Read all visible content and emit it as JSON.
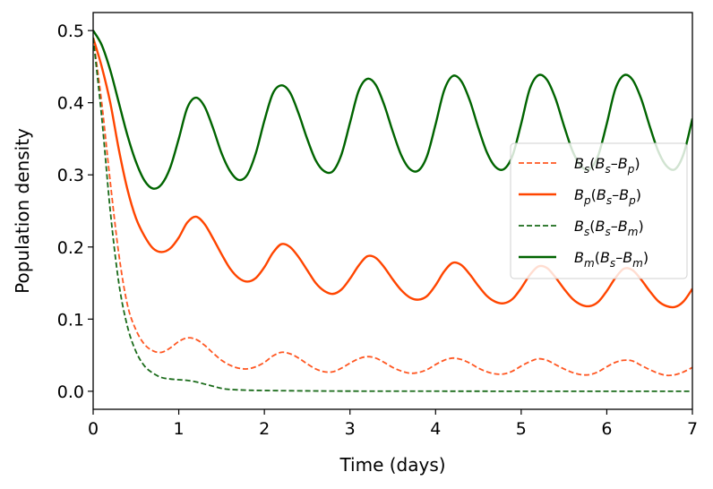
{
  "chart_data": {
    "type": "line",
    "title": "",
    "xlabel": "Time (days)",
    "ylabel": "Population density",
    "xlim": [
      0,
      7
    ],
    "ylim": [
      -0.025,
      0.525
    ],
    "xticks": [
      0,
      1,
      2,
      3,
      4,
      5,
      6,
      7
    ],
    "xtick_labels": [
      "0",
      "1",
      "2",
      "3",
      "4",
      "5",
      "6",
      "7"
    ],
    "yticks": [
      0.0,
      0.1,
      0.2,
      0.3,
      0.4,
      0.5
    ],
    "ytick_labels": [
      "0.0",
      "0.1",
      "0.2",
      "0.3",
      "0.4",
      "0.5"
    ],
    "grid": false,
    "legend_position": "center-right",
    "series": [
      {
        "name": "Bs(Bs–Bp)",
        "legend": {
          "main": "B",
          "sub1": "s",
          "open": "(B",
          "sub2": "s",
          "dash": "–B",
          "sub3": "p",
          "close": ")"
        },
        "color": "#ff5722",
        "style": "dashed",
        "points": [
          [
            0,
            0.49
          ],
          [
            0.1,
            0.4
          ],
          [
            0.2,
            0.29
          ],
          [
            0.3,
            0.19
          ],
          [
            0.4,
            0.12
          ],
          [
            0.5,
            0.085
          ],
          [
            0.6,
            0.065
          ],
          [
            0.7,
            0.056
          ],
          [
            0.8,
            0.054
          ],
          [
            0.9,
            0.06
          ],
          [
            1.0,
            0.069
          ],
          [
            1.1,
            0.074
          ],
          [
            1.2,
            0.072
          ],
          [
            1.3,
            0.064
          ],
          [
            1.4,
            0.053
          ],
          [
            1.5,
            0.043
          ],
          [
            1.6,
            0.036
          ],
          [
            1.7,
            0.032
          ],
          [
            1.8,
            0.031
          ],
          [
            1.9,
            0.034
          ],
          [
            2.0,
            0.04
          ],
          [
            2.1,
            0.049
          ],
          [
            2.2,
            0.054
          ],
          [
            2.3,
            0.052
          ],
          [
            2.4,
            0.046
          ],
          [
            2.5,
            0.038
          ],
          [
            2.6,
            0.031
          ],
          [
            2.7,
            0.027
          ],
          [
            2.8,
            0.027
          ],
          [
            2.9,
            0.032
          ],
          [
            3.0,
            0.039
          ],
          [
            3.1,
            0.045
          ],
          [
            3.2,
            0.048
          ],
          [
            3.3,
            0.046
          ],
          [
            3.4,
            0.04
          ],
          [
            3.5,
            0.033
          ],
          [
            3.6,
            0.028
          ],
          [
            3.7,
            0.025
          ],
          [
            3.8,
            0.026
          ],
          [
            3.9,
            0.03
          ],
          [
            4.0,
            0.037
          ],
          [
            4.1,
            0.043
          ],
          [
            4.2,
            0.046
          ],
          [
            4.3,
            0.044
          ],
          [
            4.4,
            0.039
          ],
          [
            4.5,
            0.032
          ],
          [
            4.6,
            0.027
          ],
          [
            4.7,
            0.024
          ],
          [
            4.8,
            0.024
          ],
          [
            4.9,
            0.028
          ],
          [
            5.0,
            0.035
          ],
          [
            5.1,
            0.041
          ],
          [
            5.2,
            0.045
          ],
          [
            5.3,
            0.043
          ],
          [
            5.4,
            0.037
          ],
          [
            5.5,
            0.031
          ],
          [
            5.6,
            0.026
          ],
          [
            5.7,
            0.023
          ],
          [
            5.8,
            0.023
          ],
          [
            5.9,
            0.027
          ],
          [
            6.0,
            0.034
          ],
          [
            6.1,
            0.04
          ],
          [
            6.2,
            0.043
          ],
          [
            6.3,
            0.042
          ],
          [
            6.4,
            0.036
          ],
          [
            6.5,
            0.03
          ],
          [
            6.6,
            0.025
          ],
          [
            6.7,
            0.022
          ],
          [
            6.8,
            0.023
          ],
          [
            6.9,
            0.027
          ],
          [
            7.0,
            0.033
          ]
        ]
      },
      {
        "name": "Bp(Bs–Bp)",
        "legend": {
          "main": "B",
          "sub1": "p",
          "open": "(B",
          "sub2": "s",
          "dash": "–B",
          "sub3": "p",
          "close": ")"
        },
        "color": "#ff4500",
        "style": "solid",
        "points": [
          [
            0,
            0.49
          ],
          [
            0.1,
            0.45
          ],
          [
            0.2,
            0.4
          ],
          [
            0.3,
            0.335
          ],
          [
            0.4,
            0.28
          ],
          [
            0.5,
            0.24
          ],
          [
            0.6,
            0.215
          ],
          [
            0.7,
            0.198
          ],
          [
            0.8,
            0.193
          ],
          [
            0.9,
            0.198
          ],
          [
            1.0,
            0.213
          ],
          [
            1.1,
            0.234
          ],
          [
            1.2,
            0.242
          ],
          [
            1.3,
            0.232
          ],
          [
            1.4,
            0.212
          ],
          [
            1.5,
            0.19
          ],
          [
            1.6,
            0.17
          ],
          [
            1.7,
            0.157
          ],
          [
            1.8,
            0.152
          ],
          [
            1.9,
            0.157
          ],
          [
            2.0,
            0.172
          ],
          [
            2.1,
            0.192
          ],
          [
            2.2,
            0.204
          ],
          [
            2.3,
            0.2
          ],
          [
            2.4,
            0.186
          ],
          [
            2.5,
            0.168
          ],
          [
            2.6,
            0.15
          ],
          [
            2.7,
            0.139
          ],
          [
            2.8,
            0.135
          ],
          [
            2.9,
            0.141
          ],
          [
            3.0,
            0.156
          ],
          [
            3.1,
            0.174
          ],
          [
            3.2,
            0.187
          ],
          [
            3.3,
            0.185
          ],
          [
            3.4,
            0.172
          ],
          [
            3.5,
            0.155
          ],
          [
            3.6,
            0.14
          ],
          [
            3.7,
            0.13
          ],
          [
            3.8,
            0.127
          ],
          [
            3.9,
            0.132
          ],
          [
            4.0,
            0.147
          ],
          [
            4.1,
            0.166
          ],
          [
            4.2,
            0.178
          ],
          [
            4.3,
            0.175
          ],
          [
            4.4,
            0.162
          ],
          [
            4.5,
            0.146
          ],
          [
            4.6,
            0.132
          ],
          [
            4.7,
            0.124
          ],
          [
            4.8,
            0.122
          ],
          [
            4.9,
            0.128
          ],
          [
            5.0,
            0.143
          ],
          [
            5.1,
            0.161
          ],
          [
            5.2,
            0.173
          ],
          [
            5.3,
            0.171
          ],
          [
            5.4,
            0.158
          ],
          [
            5.5,
            0.142
          ],
          [
            5.6,
            0.128
          ],
          [
            5.7,
            0.12
          ],
          [
            5.8,
            0.118
          ],
          [
            5.9,
            0.124
          ],
          [
            6.0,
            0.139
          ],
          [
            6.1,
            0.157
          ],
          [
            6.2,
            0.17
          ],
          [
            6.3,
            0.168
          ],
          [
            6.4,
            0.155
          ],
          [
            6.5,
            0.139
          ],
          [
            6.6,
            0.125
          ],
          [
            6.7,
            0.118
          ],
          [
            6.8,
            0.117
          ],
          [
            6.9,
            0.125
          ],
          [
            7.0,
            0.142
          ]
        ]
      },
      {
        "name": "Bs(Bs–Bm)",
        "legend": {
          "main": "B",
          "sub1": "s",
          "open": "(B",
          "sub2": "s",
          "dash": "–B",
          "sub3": "m",
          "close": ")"
        },
        "color": "#1a6b1a",
        "style": "dashed",
        "points": [
          [
            0,
            0.49
          ],
          [
            0.1,
            0.38
          ],
          [
            0.2,
            0.25
          ],
          [
            0.3,
            0.15
          ],
          [
            0.4,
            0.09
          ],
          [
            0.5,
            0.055
          ],
          [
            0.6,
            0.035
          ],
          [
            0.7,
            0.025
          ],
          [
            0.8,
            0.019
          ],
          [
            0.9,
            0.017
          ],
          [
            1.0,
            0.016
          ],
          [
            1.1,
            0.015
          ],
          [
            1.2,
            0.013
          ],
          [
            1.3,
            0.01
          ],
          [
            1.4,
            0.007
          ],
          [
            1.5,
            0.004
          ],
          [
            1.6,
            0.0025
          ],
          [
            1.8,
            0.0015
          ],
          [
            2.0,
            0.001
          ],
          [
            2.5,
            0.0005
          ],
          [
            3.0,
            0.0002
          ],
          [
            4.0,
            0.0001
          ],
          [
            5.0,
            0.0
          ],
          [
            6.0,
            0.0
          ],
          [
            7.0,
            0.0
          ]
        ]
      },
      {
        "name": "Bm(Bs–Bm)",
        "legend": {
          "main": "B",
          "sub1": "m",
          "open": "(B",
          "sub2": "s",
          "dash": "–B",
          "sub3": "m",
          "close": ")"
        },
        "color": "#006400",
        "style": "solid",
        "points": [
          [
            0,
            0.5
          ],
          [
            0.1,
            0.48
          ],
          [
            0.2,
            0.445
          ],
          [
            0.3,
            0.4
          ],
          [
            0.4,
            0.355
          ],
          [
            0.5,
            0.318
          ],
          [
            0.6,
            0.292
          ],
          [
            0.7,
            0.281
          ],
          [
            0.8,
            0.287
          ],
          [
            0.9,
            0.31
          ],
          [
            1.0,
            0.35
          ],
          [
            1.1,
            0.393
          ],
          [
            1.2,
            0.407
          ],
          [
            1.3,
            0.395
          ],
          [
            1.4,
            0.365
          ],
          [
            1.5,
            0.33
          ],
          [
            1.6,
            0.305
          ],
          [
            1.7,
            0.293
          ],
          [
            1.8,
            0.3
          ],
          [
            1.9,
            0.33
          ],
          [
            2.0,
            0.375
          ],
          [
            2.1,
            0.413
          ],
          [
            2.2,
            0.424
          ],
          [
            2.3,
            0.414
          ],
          [
            2.4,
            0.385
          ],
          [
            2.5,
            0.35
          ],
          [
            2.6,
            0.32
          ],
          [
            2.7,
            0.305
          ],
          [
            2.8,
            0.305
          ],
          [
            2.9,
            0.328
          ],
          [
            3.0,
            0.372
          ],
          [
            3.1,
            0.416
          ],
          [
            3.2,
            0.433
          ],
          [
            3.3,
            0.425
          ],
          [
            3.4,
            0.397
          ],
          [
            3.5,
            0.36
          ],
          [
            3.6,
            0.327
          ],
          [
            3.7,
            0.308
          ],
          [
            3.8,
            0.306
          ],
          [
            3.9,
            0.326
          ],
          [
            4.0,
            0.37
          ],
          [
            4.1,
            0.417
          ],
          [
            4.2,
            0.437
          ],
          [
            4.3,
            0.43
          ],
          [
            4.4,
            0.403
          ],
          [
            4.5,
            0.365
          ],
          [
            4.6,
            0.331
          ],
          [
            4.7,
            0.311
          ],
          [
            4.8,
            0.308
          ],
          [
            4.9,
            0.327
          ],
          [
            5.0,
            0.371
          ],
          [
            5.1,
            0.419
          ],
          [
            5.2,
            0.438
          ],
          [
            5.3,
            0.432
          ],
          [
            5.4,
            0.406
          ],
          [
            5.5,
            0.368
          ],
          [
            5.6,
            0.333
          ],
          [
            5.7,
            0.312
          ],
          [
            5.8,
            0.308
          ],
          [
            5.9,
            0.327
          ],
          [
            6.0,
            0.371
          ],
          [
            6.1,
            0.419
          ],
          [
            6.2,
            0.438
          ],
          [
            6.3,
            0.432
          ],
          [
            6.4,
            0.406
          ],
          [
            6.5,
            0.368
          ],
          [
            6.6,
            0.333
          ],
          [
            6.7,
            0.312
          ],
          [
            6.8,
            0.308
          ],
          [
            6.9,
            0.33
          ],
          [
            7.0,
            0.378
          ]
        ]
      }
    ]
  }
}
